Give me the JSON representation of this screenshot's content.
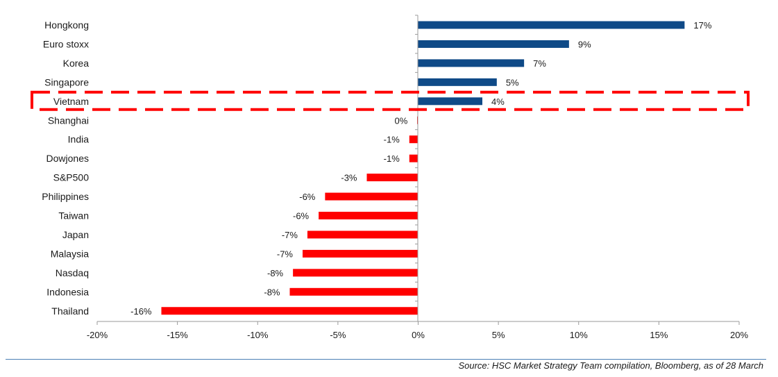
{
  "chart_data": {
    "type": "bar",
    "orientation": "horizontal",
    "categories": [
      "Hongkong",
      "Euro stoxx",
      "Korea",
      "Singapore",
      "Vietnam",
      "Shanghai",
      "India",
      "Dowjones",
      "S&P500",
      "Philippines",
      "Taiwan",
      "Japan",
      "Malaysia",
      "Nasdaq",
      "Indonesia",
      "Thailand"
    ],
    "values": [
      16.6,
      9.4,
      6.6,
      4.9,
      4.0,
      -0.05,
      -0.55,
      -0.55,
      -3.2,
      -5.8,
      -6.2,
      -6.9,
      -7.2,
      -7.8,
      -8.0,
      -16.0
    ],
    "value_labels": [
      "17%",
      "9%",
      "7%",
      "5%",
      "4%",
      "0%",
      "-1%",
      "-1%",
      "-3%",
      "-6%",
      "-6%",
      "-7%",
      "-7%",
      "-8%",
      "-8%",
      "-16%"
    ],
    "xlim": [
      -20,
      20
    ],
    "x_ticks": [
      -20,
      -15,
      -10,
      -5,
      0,
      5,
      10,
      15,
      20
    ],
    "x_tick_labels": [
      "-20%",
      "-15%",
      "-10%",
      "-5%",
      "0%",
      "5%",
      "10%",
      "15%",
      "20%"
    ],
    "highlighted_category": "Vietnam",
    "colors": {
      "positive": "#0f4a87",
      "negative": "#ff0000",
      "highlight_box": "#ff0000"
    }
  },
  "source_text": "Source: HSC Market Strategy Team compilation, Bloomberg, as of 28 March"
}
